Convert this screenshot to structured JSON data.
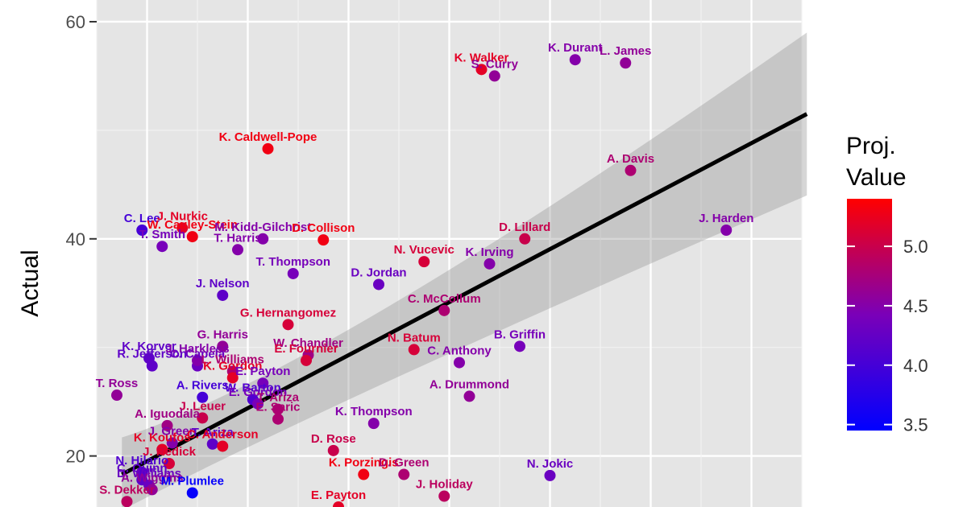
{
  "chart_data": {
    "type": "scatter",
    "ylabel": "Actual",
    "xlabel": "",
    "y_ticks": [
      "20",
      "40",
      "60"
    ],
    "x_range": [
      0.5,
      7.5
    ],
    "y_range": [
      15.3,
      62.0
    ],
    "grid": true,
    "background": "#e5e5e5",
    "legend": {
      "title_lines": [
        "Proj.",
        "Value"
      ],
      "placement": "right",
      "ticks": [
        "3.5",
        "4.0",
        "4.5",
        "5.0"
      ],
      "tick_values": [
        3.5,
        4.0,
        4.5,
        5.0
      ],
      "range": [
        3.45,
        5.4
      ],
      "low_color": "#0000ff",
      "high_color": "#ff0000"
    },
    "trend": {
      "x_start": 0.75,
      "y_start": 18.3,
      "x_end": 7.55,
      "y_end": 51.5,
      "band_start": [
        15.0,
        21.7
      ],
      "band_mid": [
        24.5,
        27.5
      ],
      "band_end": [
        44.0,
        59.0
      ],
      "x_band_mid": 2.7
    },
    "points": [
      {
        "label": "K. Walker",
        "x": 4.32,
        "y": 55.6,
        "value": 5.2
      },
      {
        "label": "S. Curry",
        "x": 4.45,
        "y": 55.0,
        "value": 4.6
      },
      {
        "label": "K. Durant",
        "x": 5.25,
        "y": 56.5,
        "value": 4.5
      },
      {
        "label": "L. James",
        "x": 5.75,
        "y": 56.2,
        "value": 4.6
      },
      {
        "label": "K. Caldwell-Pope",
        "x": 2.2,
        "y": 48.3,
        "value": 5.3
      },
      {
        "label": "A. Davis",
        "x": 5.8,
        "y": 46.3,
        "value": 4.8
      },
      {
        "label": "J. Harden",
        "x": 6.75,
        "y": 40.8,
        "value": 4.5
      },
      {
        "label": "D. Lillard",
        "x": 4.75,
        "y": 40.0,
        "value": 5.0
      },
      {
        "label": "C. Lee",
        "x": 0.95,
        "y": 40.8,
        "value": 4.0
      },
      {
        "label": "J. Nurkic",
        "x": 1.35,
        "y": 41.0,
        "value": 5.2
      },
      {
        "label": "W. Cauley-Stein",
        "x": 1.45,
        "y": 40.2,
        "value": 5.3
      },
      {
        "label": "T. Smith",
        "x": 1.15,
        "y": 39.3,
        "value": 4.4
      },
      {
        "label": "M. Kidd-Gilchrist",
        "x": 2.15,
        "y": 40.0,
        "value": 4.5
      },
      {
        "label": "D. Collison",
        "x": 2.75,
        "y": 39.9,
        "value": 5.3
      },
      {
        "label": "T. Harris",
        "x": 1.9,
        "y": 39.0,
        "value": 4.5
      },
      {
        "label": "N. Vucevic",
        "x": 3.75,
        "y": 37.9,
        "value": 5.1
      },
      {
        "label": "K. Irving",
        "x": 4.4,
        "y": 37.7,
        "value": 4.5
      },
      {
        "label": "T. Thompson",
        "x": 2.45,
        "y": 36.8,
        "value": 4.4
      },
      {
        "label": "D. Jordan",
        "x": 3.3,
        "y": 35.8,
        "value": 4.3
      },
      {
        "label": "J. Nelson",
        "x": 1.75,
        "y": 34.8,
        "value": 4.2
      },
      {
        "label": "C. McCollum",
        "x": 3.95,
        "y": 33.4,
        "value": 4.8
      },
      {
        "label": "G. Hernangomez",
        "x": 2.4,
        "y": 32.1,
        "value": 5.1
      },
      {
        "label": "B. Griffin",
        "x": 4.7,
        "y": 30.1,
        "value": 4.4
      },
      {
        "label": "G. Harris",
        "x": 1.75,
        "y": 30.1,
        "value": 4.6
      },
      {
        "label": "N. Batum",
        "x": 3.65,
        "y": 29.8,
        "value": 5.1
      },
      {
        "label": "W. Chandler",
        "x": 2.6,
        "y": 29.3,
        "value": 4.7
      },
      {
        "label": "C. Anthony",
        "x": 4.1,
        "y": 28.6,
        "value": 4.5
      },
      {
        "label": "K. Korver",
        "x": 1.02,
        "y": 29.0,
        "value": 4.2
      },
      {
        "label": "R. Jefferson",
        "x": 1.05,
        "y": 28.3,
        "value": 4.2
      },
      {
        "label": "C. Capela",
        "x": 1.5,
        "y": 28.3,
        "value": 4.3
      },
      {
        "label": "E. Fournier",
        "x": 2.58,
        "y": 28.8,
        "value": 5.1
      },
      {
        "label": "J. Harkless",
        "x": 1.5,
        "y": 28.8,
        "value": 4.5
      },
      {
        "label": "L. Williams",
        "x": 1.85,
        "y": 27.8,
        "value": 4.8
      },
      {
        "label": "K. Gordon",
        "x": 1.85,
        "y": 27.2,
        "value": 5.2
      },
      {
        "label": "A. Rivers",
        "x": 1.55,
        "y": 25.4,
        "value": 4.0
      },
      {
        "label": "E. Payton",
        "x": 2.15,
        "y": 26.7,
        "value": 4.4
      },
      {
        "label": "A. Drummond",
        "x": 4.2,
        "y": 25.5,
        "value": 4.6
      },
      {
        "label": "T. Ross",
        "x": 0.7,
        "y": 25.6,
        "value": 4.6
      },
      {
        "label": "W. Barton",
        "x": 2.05,
        "y": 25.2,
        "value": 4.1
      },
      {
        "label": "E. Gordon",
        "x": 2.1,
        "y": 24.8,
        "value": 4.4
      },
      {
        "label": "T. Ariza",
        "x": 2.3,
        "y": 24.3,
        "value": 4.8
      },
      {
        "label": "J. Leuer",
        "x": 1.55,
        "y": 23.5,
        "value": 5.0
      },
      {
        "label": "E. Saric",
        "x": 2.3,
        "y": 23.4,
        "value": 4.8
      },
      {
        "label": "K. Thompson",
        "x": 3.25,
        "y": 23.0,
        "value": 4.5
      },
      {
        "label": "A. Iguodala",
        "x": 1.2,
        "y": 22.8,
        "value": 4.7
      },
      {
        "label": "J. Green",
        "x": 1.25,
        "y": 21.2,
        "value": 4.5
      },
      {
        "label": "T. Ariza",
        "x": 1.65,
        "y": 21.1,
        "value": 4.2
      },
      {
        "label": "C. Anderson",
        "x": 1.75,
        "y": 20.9,
        "value": 5.2
      },
      {
        "label": "D. Rose",
        "x": 2.85,
        "y": 20.5,
        "value": 5.0
      },
      {
        "label": "K. Koufos",
        "x": 1.15,
        "y": 20.6,
        "value": 5.2
      },
      {
        "label": "J. Redick",
        "x": 1.22,
        "y": 19.3,
        "value": 5.1
      },
      {
        "label": "N. Hilario",
        "x": 0.95,
        "y": 18.5,
        "value": 4.1
      },
      {
        "label": "K. Porzingis",
        "x": 3.15,
        "y": 18.3,
        "value": 5.3
      },
      {
        "label": "D. Green",
        "x": 3.55,
        "y": 18.3,
        "value": 4.8
      },
      {
        "label": "N. Jokic",
        "x": 5.0,
        "y": 18.2,
        "value": 4.3
      },
      {
        "label": "C. Quinn",
        "x": 0.95,
        "y": 17.8,
        "value": 4.2
      },
      {
        "label": "D. Williams",
        "x": 1.02,
        "y": 17.3,
        "value": 4.3
      },
      {
        "label": "A. Wiggins",
        "x": 1.05,
        "y": 16.9,
        "value": 4.6
      },
      {
        "label": "M. Plumlee",
        "x": 1.45,
        "y": 16.6,
        "value": 3.5
      },
      {
        "label": "J. Holiday",
        "x": 3.95,
        "y": 16.3,
        "value": 4.9
      },
      {
        "label": "S. Dekker",
        "x": 0.8,
        "y": 15.8,
        "value": 4.9
      },
      {
        "label": "E. Payton",
        "x": 2.9,
        "y": 15.3,
        "value": 5.2
      }
    ]
  }
}
